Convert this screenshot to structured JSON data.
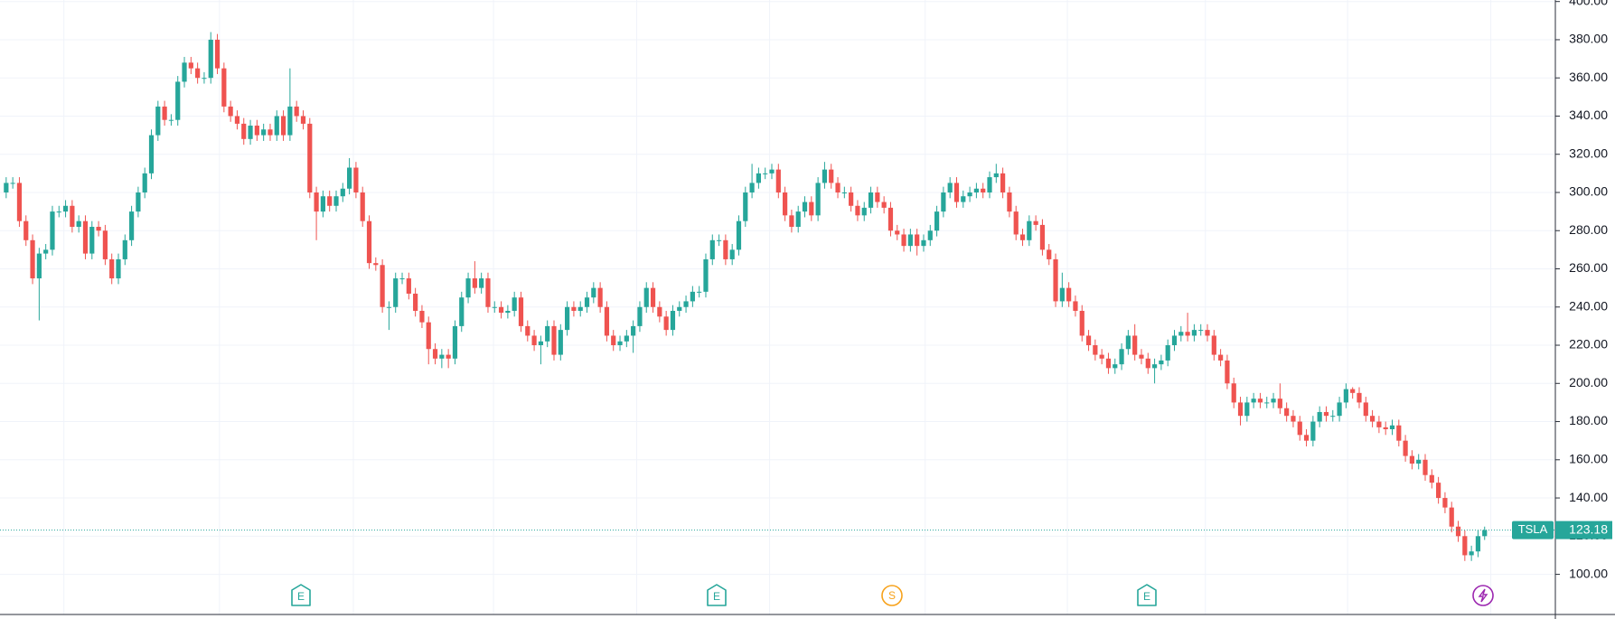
{
  "chart_data": {
    "type": "candlestick",
    "symbol": "TSLA",
    "last": 123.18,
    "up_color": "#26a69a",
    "down_color": "#ef5350",
    "grid": true,
    "ylim": [
      78.5,
      400.8
    ],
    "yticks": [
      {
        "value": 100,
        "label": "100.00"
      },
      {
        "value": 120,
        "label": "120.00"
      },
      {
        "value": 140,
        "label": "140.00"
      },
      {
        "value": 160,
        "label": "160.00"
      },
      {
        "value": 180,
        "label": "180.00"
      },
      {
        "value": 200,
        "label": "200.00"
      },
      {
        "value": 220,
        "label": "220.00"
      },
      {
        "value": 240,
        "label": "240.00"
      },
      {
        "value": 260,
        "label": "260.00"
      },
      {
        "value": 280,
        "label": "280.00"
      },
      {
        "value": 300,
        "label": "300.00"
      },
      {
        "value": 320,
        "label": "320.00"
      },
      {
        "value": 340,
        "label": "340.00"
      },
      {
        "value": 360,
        "label": "360.00"
      },
      {
        "value": 380,
        "label": "380.00"
      },
      {
        "value": 400,
        "label": "400.00"
      }
    ],
    "events": [
      {
        "label": "E"
      },
      {
        "label": "E"
      },
      {
        "label": "S"
      },
      {
        "label": "E"
      }
    ],
    "open": [
      300,
      305,
      305,
      285,
      275,
      255,
      268,
      270,
      290,
      290,
      293,
      282,
      285,
      268,
      282,
      280,
      265,
      255,
      265,
      275,
      290,
      300,
      310,
      330,
      345,
      338,
      338,
      358,
      368,
      365,
      360,
      360,
      380,
      365,
      345,
      340,
      336,
      328,
      335,
      330,
      333,
      330,
      340,
      330,
      345,
      340,
      336,
      300,
      290,
      298,
      293,
      298,
      302,
      313,
      300,
      285,
      263,
      262,
      240,
      240,
      255,
      255,
      247,
      238,
      232,
      218,
      213,
      215,
      213,
      230,
      245,
      255,
      250,
      255,
      240,
      240,
      237,
      238,
      245,
      230,
      225,
      220,
      222,
      230,
      215,
      228,
      240,
      238,
      240,
      245,
      250,
      240,
      225,
      220,
      222,
      225,
      230,
      240,
      250,
      240,
      235,
      228,
      238,
      240,
      243,
      248,
      248,
      265,
      275,
      275,
      265,
      270,
      285,
      300,
      305,
      310,
      310,
      312,
      300,
      288,
      282,
      290,
      295,
      288,
      305,
      312,
      305,
      300,
      300,
      293,
      288,
      292,
      300,
      295,
      292,
      280,
      278,
      272,
      278,
      272,
      275,
      280,
      290,
      300,
      305,
      295,
      298,
      300,
      302,
      300,
      308,
      310,
      300,
      290,
      278,
      275,
      285,
      283,
      270,
      265,
      243,
      250,
      243,
      238,
      225,
      220,
      215,
      213,
      208,
      210,
      218,
      225,
      215,
      213,
      208,
      210,
      212,
      220,
      225,
      227,
      225,
      228,
      228,
      225,
      215,
      212,
      200,
      190,
      183,
      190,
      192,
      190,
      190,
      192,
      187,
      183,
      180,
      173,
      170,
      180,
      185,
      183,
      183,
      190,
      197,
      195,
      190,
      183,
      180,
      177,
      176,
      178,
      170,
      162,
      158,
      160,
      152,
      148,
      140,
      135,
      125,
      120,
      110,
      112,
      120
    ],
    "high": [
      308,
      308,
      308,
      288,
      278,
      271,
      273,
      293,
      293,
      296,
      296,
      288,
      288,
      285,
      285,
      283,
      268,
      268,
      278,
      293,
      303,
      313,
      333,
      348,
      348,
      341,
      361,
      371,
      371,
      368,
      363,
      384,
      383,
      368,
      348,
      343,
      339,
      338,
      338,
      336,
      336,
      343,
      343,
      365,
      348,
      343,
      339,
      303,
      301,
      301,
      301,
      305,
      318,
      316,
      303,
      288,
      266,
      265,
      243,
      258,
      258,
      258,
      250,
      241,
      235,
      221,
      218,
      218,
      233,
      248,
      258,
      264,
      258,
      258,
      243,
      243,
      241,
      248,
      248,
      233,
      228,
      225,
      233,
      233,
      231,
      243,
      243,
      243,
      248,
      253,
      253,
      243,
      228,
      225,
      228,
      233,
      243,
      253,
      253,
      243,
      238,
      241,
      243,
      246,
      251,
      251,
      268,
      278,
      278,
      278,
      273,
      288,
      303,
      315,
      313,
      313,
      315,
      315,
      303,
      291,
      293,
      298,
      298,
      308,
      316,
      315,
      308,
      303,
      303,
      296,
      295,
      303,
      303,
      298,
      295,
      283,
      281,
      281,
      281,
      278,
      283,
      293,
      303,
      308,
      308,
      301,
      303,
      305,
      305,
      311,
      315,
      313,
      303,
      293,
      281,
      288,
      288,
      286,
      273,
      268,
      258,
      253,
      246,
      241,
      228,
      223,
      218,
      216,
      213,
      221,
      228,
      231,
      218,
      216,
      213,
      215,
      223,
      228,
      230,
      237,
      231,
      231,
      231,
      228,
      218,
      215,
      203,
      193,
      193,
      195,
      195,
      193,
      195,
      200,
      190,
      186,
      183,
      176,
      183,
      188,
      188,
      186,
      193,
      200,
      198,
      198,
      193,
      186,
      183,
      180,
      181,
      181,
      173,
      165,
      163,
      163,
      155,
      151,
      143,
      138,
      128,
      123,
      115,
      123,
      125
    ],
    "low": [
      297,
      302,
      282,
      272,
      252,
      233,
      265,
      267,
      287,
      287,
      279,
      279,
      265,
      265,
      277,
      262,
      252,
      252,
      262,
      272,
      287,
      297,
      307,
      327,
      335,
      335,
      335,
      355,
      362,
      357,
      357,
      357,
      362,
      342,
      337,
      333,
      325,
      325,
      327,
      327,
      327,
      327,
      327,
      327,
      337,
      333,
      297,
      275,
      287,
      290,
      290,
      295,
      299,
      297,
      282,
      260,
      259,
      237,
      228,
      237,
      252,
      244,
      235,
      229,
      210,
      210,
      208,
      208,
      210,
      227,
      242,
      247,
      247,
      237,
      237,
      234,
      234,
      235,
      227,
      222,
      217,
      210,
      219,
      212,
      212,
      225,
      235,
      235,
      237,
      242,
      237,
      222,
      217,
      217,
      219,
      216,
      227,
      237,
      237,
      232,
      225,
      225,
      235,
      237,
      240,
      245,
      245,
      262,
      272,
      262,
      262,
      267,
      282,
      297,
      302,
      307,
      307,
      297,
      285,
      279,
      279,
      287,
      285,
      285,
      302,
      302,
      297,
      297,
      290,
      285,
      285,
      289,
      292,
      289,
      277,
      275,
      269,
      269,
      267,
      269,
      272,
      277,
      287,
      297,
      292,
      292,
      295,
      297,
      297,
      297,
      305,
      297,
      287,
      275,
      272,
      272,
      280,
      267,
      262,
      240,
      240,
      240,
      235,
      222,
      217,
      212,
      210,
      205,
      205,
      207,
      215,
      212,
      210,
      205,
      200,
      207,
      209,
      217,
      222,
      222,
      222,
      225,
      222,
      212,
      209,
      197,
      187,
      178,
      180,
      187,
      187,
      187,
      187,
      184,
      180,
      177,
      170,
      167,
      167,
      177,
      180,
      180,
      180,
      187,
      192,
      187,
      180,
      177,
      174,
      173,
      173,
      167,
      159,
      155,
      155,
      149,
      145,
      137,
      132,
      122,
      117,
      107,
      107,
      109,
      118
    ],
    "close": [
      305,
      305,
      285,
      275,
      255,
      268,
      270,
      290,
      290,
      293,
      282,
      285,
      268,
      282,
      280,
      265,
      255,
      265,
      275,
      290,
      300,
      310,
      330,
      345,
      338,
      338,
      358,
      368,
      365,
      360,
      360,
      380,
      365,
      345,
      340,
      336,
      328,
      335,
      330,
      333,
      330,
      340,
      330,
      345,
      340,
      336,
      300,
      290,
      298,
      293,
      298,
      302,
      313,
      300,
      285,
      263,
      262,
      240,
      240,
      255,
      255,
      247,
      238,
      232,
      218,
      213,
      215,
      213,
      230,
      245,
      255,
      250,
      255,
      240,
      240,
      237,
      238,
      245,
      230,
      225,
      220,
      222,
      230,
      215,
      228,
      240,
      238,
      240,
      245,
      250,
      240,
      225,
      220,
      222,
      225,
      230,
      240,
      250,
      240,
      235,
      228,
      238,
      240,
      243,
      248,
      248,
      265,
      275,
      275,
      265,
      270,
      285,
      300,
      305,
      310,
      310,
      312,
      300,
      288,
      282,
      290,
      295,
      288,
      305,
      312,
      305,
      300,
      300,
      293,
      288,
      292,
      300,
      295,
      292,
      280,
      278,
      272,
      278,
      272,
      275,
      280,
      290,
      300,
      305,
      295,
      298,
      300,
      302,
      300,
      308,
      310,
      300,
      290,
      278,
      275,
      285,
      283,
      270,
      265,
      243,
      250,
      243,
      238,
      225,
      220,
      215,
      213,
      208,
      210,
      218,
      225,
      215,
      213,
      208,
      210,
      212,
      220,
      225,
      227,
      225,
      228,
      228,
      225,
      215,
      212,
      200,
      190,
      183,
      190,
      192,
      190,
      190,
      192,
      187,
      183,
      180,
      173,
      170,
      180,
      185,
      183,
      183,
      190,
      197,
      195,
      190,
      183,
      180,
      177,
      176,
      178,
      170,
      162,
      158,
      160,
      152,
      148,
      140,
      135,
      125,
      120,
      110,
      112,
      120,
      123.18
    ]
  }
}
